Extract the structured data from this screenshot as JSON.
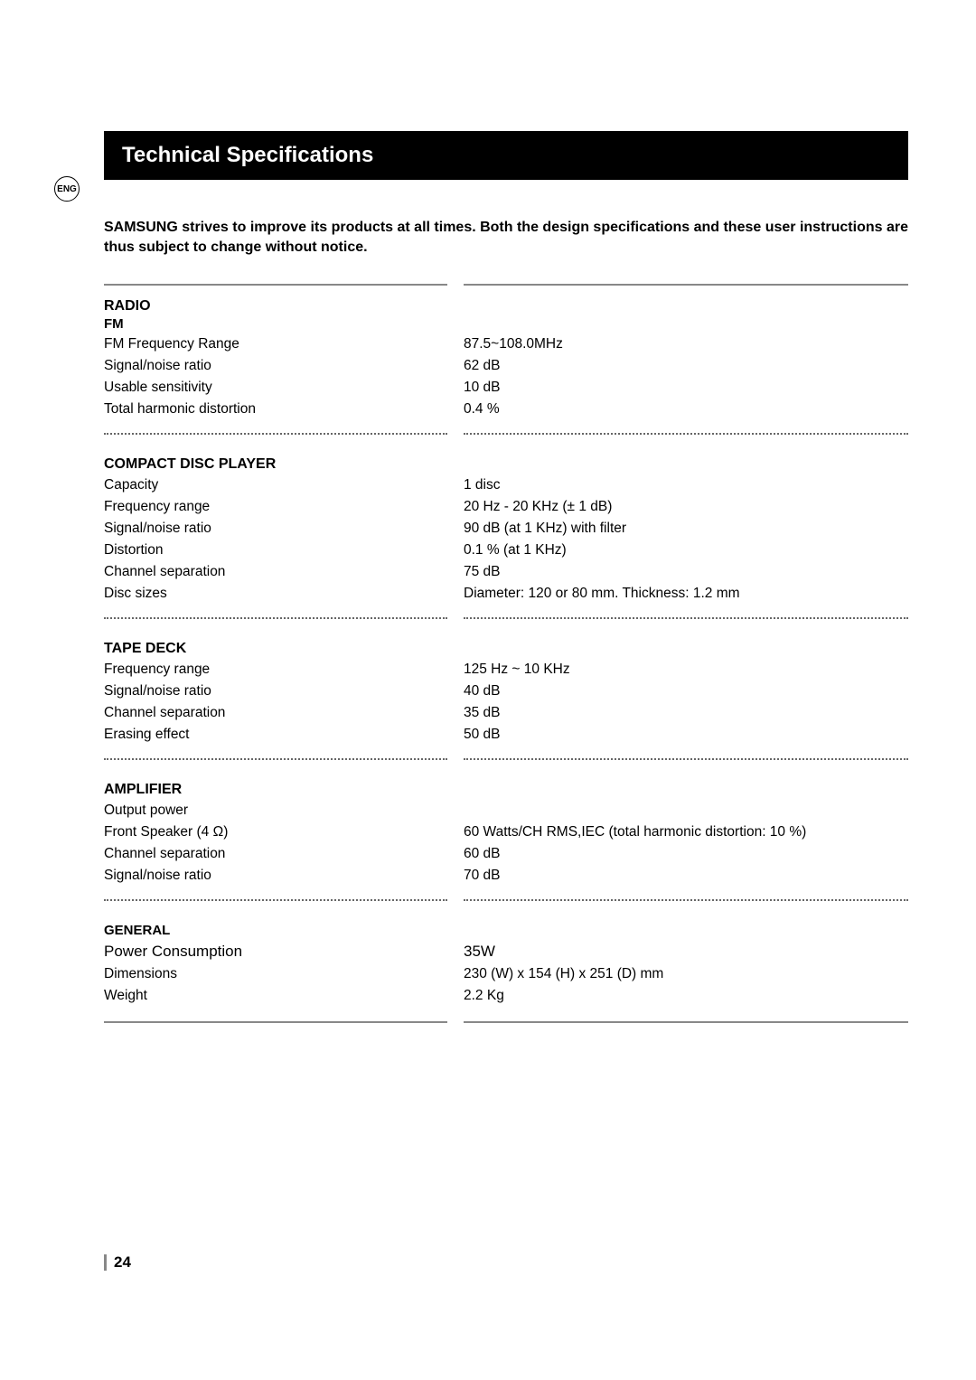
{
  "lang_badge": "ENG",
  "title": "Technical Specifications",
  "intro": "SAMSUNG strives to improve its products at all times. Both the design specifications and these user instructions are thus subject to change without notice.",
  "sections": {
    "radio": {
      "heading": "RADIO",
      "sub": "FM",
      "rows": [
        {
          "label": "FM Frequency Range",
          "value": "87.5~108.0MHz"
        },
        {
          "label": "Signal/noise ratio",
          "value": "62 dB"
        },
        {
          "label": "Usable sensitivity",
          "value": "10 dB"
        },
        {
          "label": "Total harmonic distortion",
          "value": "0.4 %"
        }
      ]
    },
    "cd": {
      "heading": "COMPACT DISC PLAYER",
      "rows": [
        {
          "label": "Capacity",
          "value": "1 disc"
        },
        {
          "label": "Frequency range",
          "value": "20 Hz - 20 KHz (± 1 dB)"
        },
        {
          "label": "Signal/noise ratio",
          "value": "90 dB (at 1 KHz) with filter"
        },
        {
          "label": "Distortion",
          "value": "0.1 % (at 1 KHz)"
        },
        {
          "label": "Channel separation",
          "value": "75 dB"
        },
        {
          "label": "Disc sizes",
          "value": "Diameter: 120 or 80 mm. Thickness: 1.2 mm"
        }
      ]
    },
    "tape": {
      "heading": "TAPE DECK",
      "rows": [
        {
          "label": "Frequency range",
          "value": "125 Hz ~ 10 KHz"
        },
        {
          "label": "Signal/noise ratio",
          "value": "40 dB"
        },
        {
          "label": "Channel separation",
          "value": "35 dB"
        },
        {
          "label": "Erasing effect",
          "value": "50 dB"
        }
      ]
    },
    "amp": {
      "heading": "AMPLIFIER",
      "rows": [
        {
          "label": "Output power",
          "value": ""
        },
        {
          "label": "Front Speaker (4 Ω)",
          "value": "60 Watts/CH RMS,IEC (total harmonic distortion: 10 %)"
        },
        {
          "label": "Channel separation",
          "value": "60 dB"
        },
        {
          "label": "Signal/noise ratio",
          "value": "70 dB"
        }
      ]
    },
    "general": {
      "heading": "GENERAL",
      "rows": [
        {
          "label": "Power Consumption",
          "value": "35W",
          "large": true
        },
        {
          "label": "Dimensions",
          "value": "230 (W) x 154 (H) x 251 (D) mm"
        },
        {
          "label": "Weight",
          "value": "2.2 Kg"
        }
      ]
    }
  },
  "page_number": "24",
  "colors": {
    "title_bg": "#000000",
    "title_fg": "#ffffff",
    "rule": "#888888",
    "text": "#000000"
  }
}
